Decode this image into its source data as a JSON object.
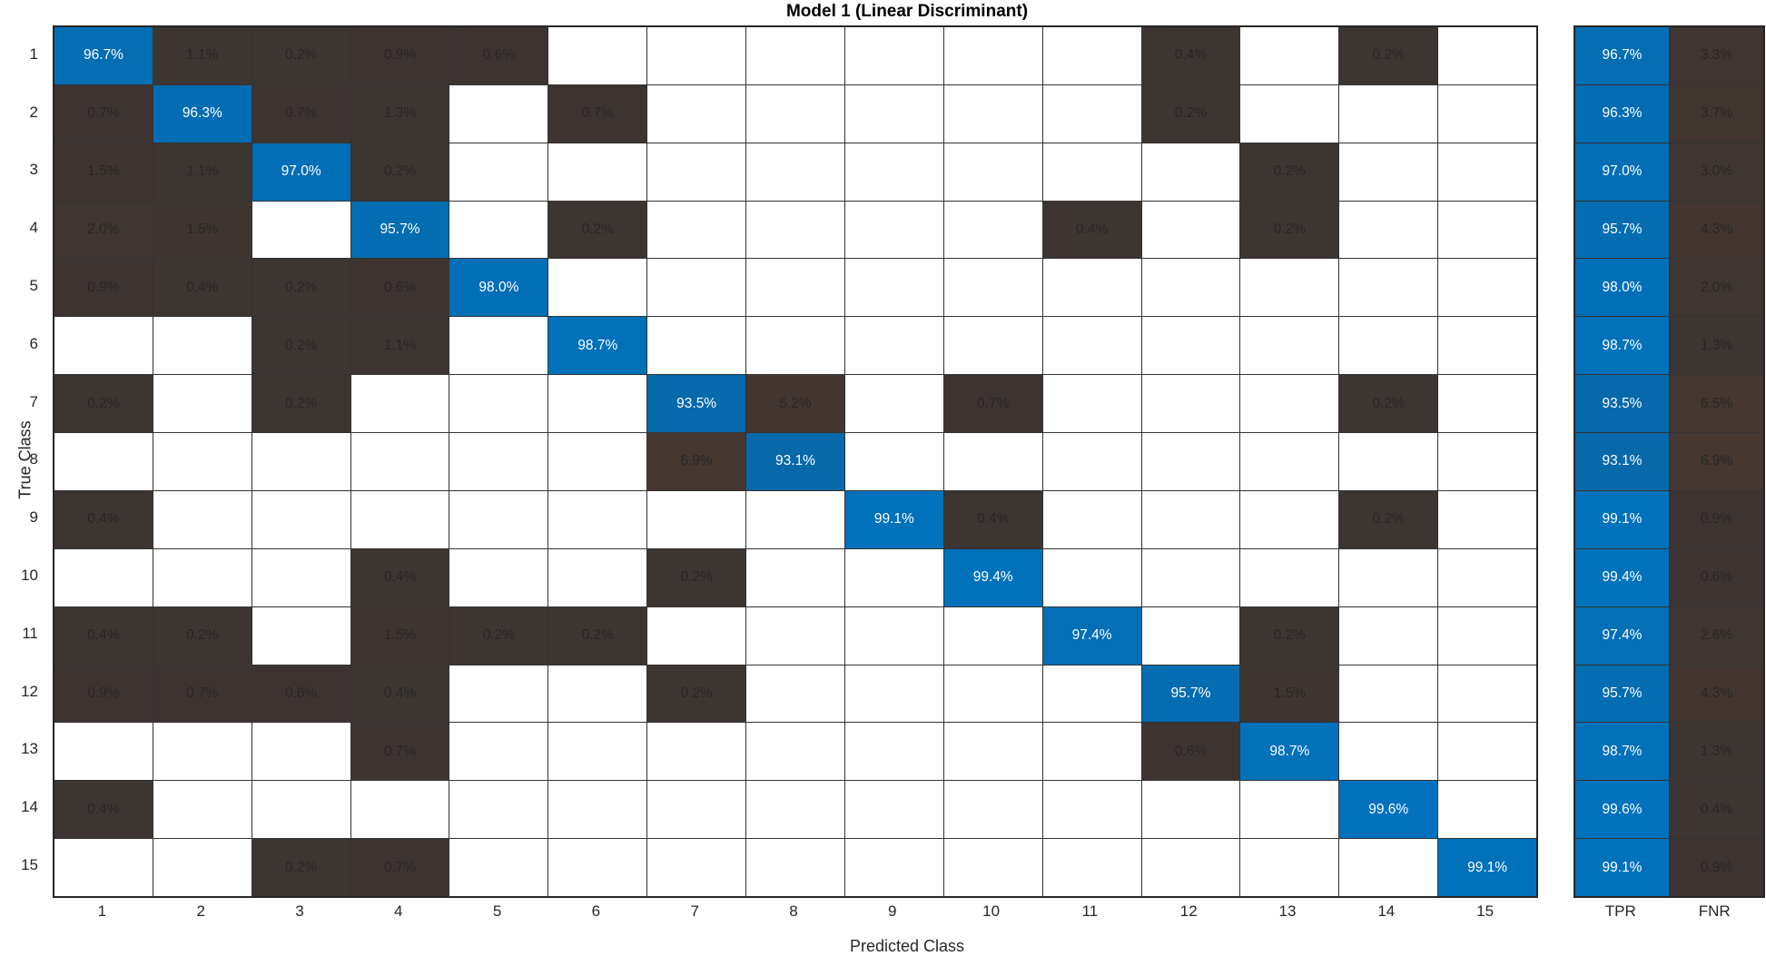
{
  "title": "Model 1 (Linear Discriminant)",
  "xlabel": "Predicted Class",
  "ylabel": "True Class",
  "summary_headers": [
    "TPR",
    "FNR"
  ],
  "colors": {
    "diagonal": "#0072BD",
    "off_diagonal": "#D95319",
    "grid_line": "#333333",
    "cell_text_dark": "#262626",
    "cell_text_light": "#FFFFFF",
    "empty_cell": "#FFFFFF"
  },
  "chart_data": {
    "type": "heatmap",
    "subtype": "confusion-matrix",
    "title": "Model 1 (Linear Discriminant)",
    "xlabel": "Predicted Class",
    "ylabel": "True Class",
    "categories": [
      "1",
      "2",
      "3",
      "4",
      "5",
      "6",
      "7",
      "8",
      "9",
      "10",
      "11",
      "12",
      "13",
      "14",
      "15"
    ],
    "value_unit": "%",
    "grid": true,
    "matrix_percent": [
      [
        96.7,
        1.1,
        0.2,
        0.9,
        0.6,
        null,
        null,
        null,
        null,
        null,
        null,
        0.4,
        null,
        0.2,
        null
      ],
      [
        0.7,
        96.3,
        0.7,
        1.3,
        null,
        0.7,
        null,
        null,
        null,
        null,
        null,
        0.2,
        null,
        null,
        null
      ],
      [
        1.5,
        1.1,
        97.0,
        0.2,
        null,
        null,
        null,
        null,
        null,
        null,
        null,
        null,
        0.2,
        null,
        null
      ],
      [
        2.0,
        1.5,
        null,
        95.7,
        null,
        0.2,
        null,
        null,
        null,
        null,
        0.4,
        null,
        0.2,
        null,
        null
      ],
      [
        0.9,
        0.4,
        0.2,
        0.6,
        98.0,
        null,
        null,
        null,
        null,
        null,
        null,
        null,
        null,
        null,
        null
      ],
      [
        null,
        null,
        0.2,
        1.1,
        null,
        98.7,
        null,
        null,
        null,
        null,
        null,
        null,
        null,
        null,
        null
      ],
      [
        0.2,
        null,
        0.2,
        null,
        null,
        null,
        93.5,
        5.2,
        null,
        0.7,
        null,
        null,
        null,
        0.2,
        null
      ],
      [
        null,
        null,
        null,
        null,
        null,
        null,
        6.9,
        93.1,
        null,
        null,
        null,
        null,
        null,
        null,
        null
      ],
      [
        0.4,
        null,
        null,
        null,
        null,
        null,
        null,
        null,
        99.1,
        0.4,
        null,
        null,
        null,
        0.2,
        null
      ],
      [
        null,
        null,
        null,
        0.4,
        null,
        null,
        0.2,
        null,
        null,
        99.4,
        null,
        null,
        null,
        null,
        null
      ],
      [
        0.4,
        0.2,
        null,
        1.5,
        0.2,
        0.2,
        null,
        null,
        null,
        null,
        97.4,
        null,
        0.2,
        null,
        null
      ],
      [
        0.9,
        0.7,
        0.6,
        0.4,
        null,
        null,
        0.2,
        null,
        null,
        null,
        null,
        95.7,
        1.5,
        null,
        null
      ],
      [
        null,
        null,
        null,
        0.7,
        null,
        null,
        null,
        null,
        null,
        null,
        null,
        0.6,
        98.7,
        null,
        null
      ],
      [
        0.4,
        null,
        null,
        null,
        null,
        null,
        null,
        null,
        null,
        null,
        null,
        null,
        null,
        99.6,
        null
      ],
      [
        null,
        null,
        0.2,
        0.7,
        null,
        null,
        null,
        null,
        null,
        null,
        null,
        null,
        null,
        null,
        99.1
      ]
    ],
    "row_summary": {
      "tpr": [
        96.7,
        96.3,
        97.0,
        95.7,
        98.0,
        98.7,
        93.5,
        93.1,
        99.1,
        99.4,
        97.4,
        95.7,
        98.7,
        99.6,
        99.1
      ],
      "fnr": [
        3.3,
        3.7,
        3.0,
        4.3,
        2.0,
        1.3,
        6.5,
        6.9,
        0.9,
        0.6,
        2.6,
        4.3,
        1.3,
        0.4,
        0.9
      ]
    },
    "legend_position": "none"
  }
}
